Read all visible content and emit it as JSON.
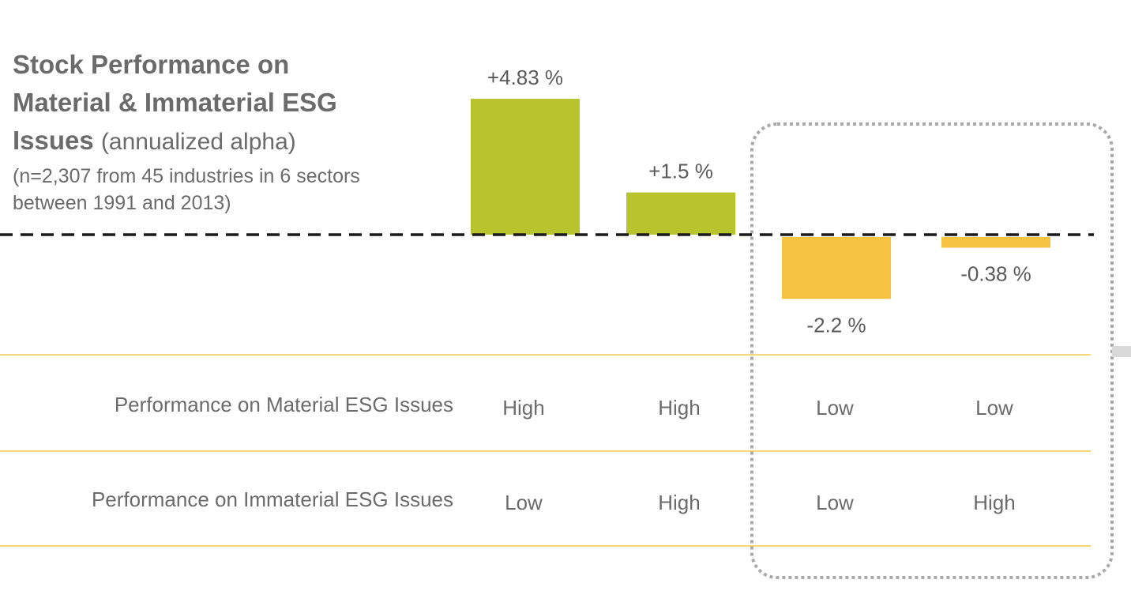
{
  "title": {
    "line1": "Stock Performance on",
    "line2": "Material & Immaterial ESG",
    "line3": "Issues",
    "subtitle": "(annualized alpha)",
    "note_line1": "(n=2,307 from 45 industries in 6 sectors",
    "note_line2": "between 1991 and 2013)"
  },
  "rows": [
    {
      "label": "Performance on Material ESG Issues",
      "values": [
        "High",
        "High",
        "Low",
        "Low"
      ]
    },
    {
      "label": "Performance on Immaterial ESG Issues",
      "values": [
        "Low",
        "High",
        "Low",
        "High"
      ]
    }
  ],
  "chart_data": {
    "type": "bar",
    "categories": [
      "High / Low",
      "High / High",
      "Low / Low",
      "Low / High"
    ],
    "values": [
      4.83,
      1.5,
      -2.2,
      -0.38
    ],
    "value_labels": [
      "+4.83 %",
      "+1.5 %",
      "-2.2 %",
      "-0.38 %"
    ],
    "ylim": [
      -4.5,
      6.5
    ],
    "baseline": 0,
    "colors": {
      "positive": "#b8c42d",
      "negative": "#f5c242",
      "baseline": "#1a1a1a",
      "row_rule": "#f2c84b",
      "highlight_box": "#a9a9a9"
    },
    "highlight": "Low material ESG performance",
    "grid": false,
    "legend": "none"
  }
}
